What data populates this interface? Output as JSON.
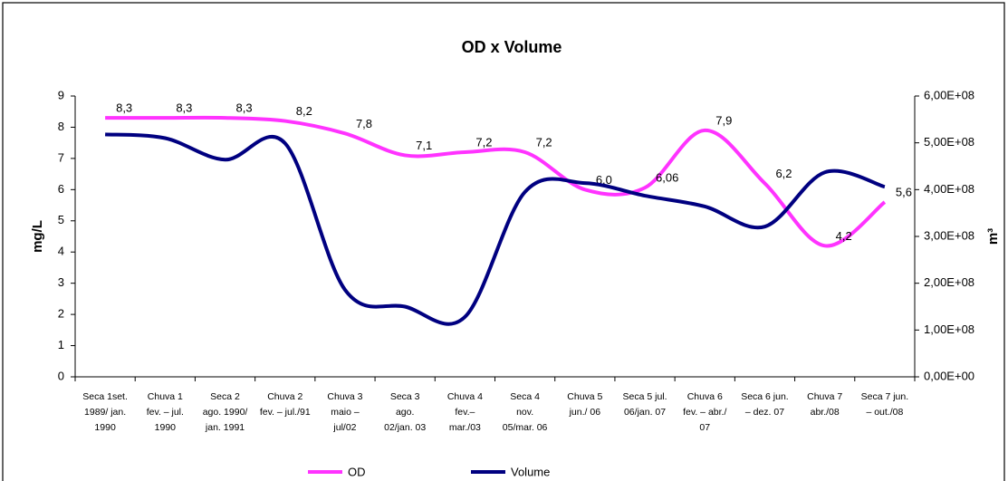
{
  "chart_data": {
    "type": "line",
    "title": "OD x Volume",
    "categories": [
      "Seca 1set.\n1989/ jan.\n1990",
      "Chuva 1\nfev. – jul.\n1990",
      "Seca 2\nago. 1990/\njan. 1991",
      "Chuva 2\nfev. – jul./91",
      "Chuva 3\nmaio –\njul/02",
      "Seca 3\nago.\n02/jan. 03",
      "Chuva 4\nfev.–\nmar./03",
      "Seca 4\nnov.\n05/mar. 06",
      "Chuva 5\njun./ 06",
      "Seca 5 jul.\n06/jan. 07",
      "Chuva 6\nfev. – abr./\n07",
      "Seca 6 jun.\n– dez. 07",
      "Chuva 7\nabr./08",
      "Seca 7 jun.\n– out./08"
    ],
    "series": [
      {
        "name": "OD",
        "color": "#ff33ff",
        "values": [
          8.3,
          8.3,
          8.3,
          8.2,
          7.8,
          7.1,
          7.2,
          7.2,
          6.0,
          6.06,
          7.9,
          6.2,
          4.2,
          5.6
        ],
        "value_labels": [
          "8,3",
          "8,3",
          "8,3",
          "8,2",
          "7,8",
          "7,1",
          "7,2",
          "7,2",
          "6,0",
          "6,06",
          "7,9",
          "6,2",
          "4,2",
          "5,6"
        ]
      },
      {
        "name": "Volume",
        "color": "#000080",
        "axis": "y2",
        "values": [
          518000000,
          510000000,
          464000000,
          499000000,
          186000000,
          150000000,
          128000000,
          395000000,
          414000000,
          387000000,
          364000000,
          321000000,
          437000000,
          406000000
        ]
      }
    ],
    "y_label": "mg/L",
    "y2_label": "m³",
    "ylim": [
      0,
      9
    ],
    "yticks": [
      0,
      1,
      2,
      3,
      4,
      5,
      6,
      7,
      8,
      9
    ],
    "y2lim": [
      0,
      600000000
    ],
    "y2ticks": [
      {
        "value": 0,
        "label": "0,00E+00"
      },
      {
        "value": 100000000,
        "label": "1,00E+08"
      },
      {
        "value": 200000000,
        "label": "2,00E+08"
      },
      {
        "value": 300000000,
        "label": "3,00E+08"
      },
      {
        "value": 400000000,
        "label": "4,00E+08"
      },
      {
        "value": 500000000,
        "label": "5,00E+08"
      },
      {
        "value": 600000000,
        "label": "6,00E+08"
      }
    ],
    "legend": "bottom",
    "grid": false
  }
}
